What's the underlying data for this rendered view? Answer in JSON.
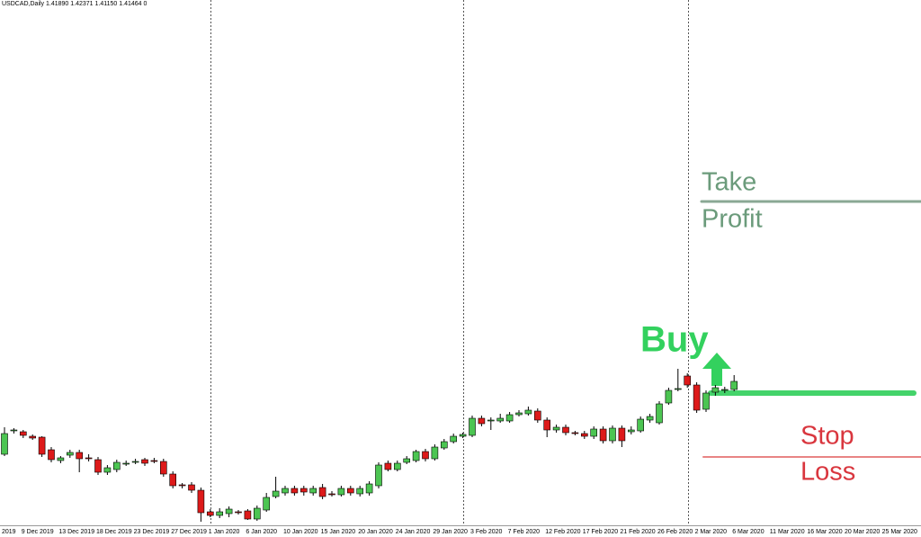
{
  "chart_data": {
    "type": "candlestick",
    "title": "USDCAD,Daily  1.41890 1.42371 1.41150 1.41464  0",
    "categories": [
      "2019",
      null,
      "9 Dec 2019",
      null,
      null,
      null,
      "13 Dec 2019",
      null,
      null,
      null,
      "18 Dec 2019",
      null,
      null,
      null,
      "23 Dec 2019",
      null,
      null,
      null,
      "27 Dec 2019",
      null,
      null,
      null,
      "1 Jan 2020",
      null,
      null,
      null,
      "6 Jan 2020",
      null,
      null,
      null,
      "10 Jan 2020",
      null,
      null,
      null,
      "15 Jan 2020",
      null,
      null,
      null,
      "20 Jan 2020",
      null,
      null,
      null,
      "24 Jan 2020",
      null,
      null,
      null,
      "29 Jan 2020",
      null,
      null,
      null,
      "3 Feb 2020",
      null,
      null,
      null,
      "7 Feb 2020",
      null,
      null,
      null,
      "12 Feb 2020",
      null,
      null,
      null,
      "17 Feb 2020",
      null,
      null,
      null,
      "21 Feb 2020",
      null,
      null,
      null,
      "26 Feb 2020",
      null,
      null,
      null,
      "2 Mar 2020",
      null,
      null,
      null,
      "6 Mar 2020",
      null,
      null,
      null,
      "11 Mar 2020",
      null,
      null,
      null,
      "16 Mar 2020",
      null,
      null,
      null,
      "20 Mar 2020",
      null,
      null,
      null,
      "25 Mar 2020",
      null,
      null,
      null
    ],
    "open": [
      1.3159,
      1.3237,
      1.3234,
      1.3219,
      1.3216,
      1.3174,
      1.3138,
      1.3156,
      1.3165,
      1.3147,
      1.3141,
      1.3099,
      1.3108,
      1.3126,
      1.3132,
      1.3141,
      1.3138,
      1.3135,
      1.3093,
      1.3057,
      1.3057,
      1.3039,
      1.2967,
      1.2955,
      1.2961,
      1.2967,
      1.297,
      1.2943,
      1.2973,
      1.3018,
      1.303,
      1.3045,
      1.3045,
      1.303,
      1.3048,
      1.3027,
      1.3024,
      1.3045,
      1.3027,
      1.303,
      1.3054,
      1.3129,
      1.3108,
      1.3132,
      1.3138,
      1.3168,
      1.3144,
      1.318,
      1.3201,
      1.3219,
      1.3222,
      1.3279,
      1.327,
      1.327,
      1.327,
      1.3291,
      1.3294,
      1.3303,
      1.3273,
      1.324,
      1.3249,
      1.3231,
      1.3228,
      1.3219,
      1.3243,
      1.3204,
      1.3246,
      1.3234,
      1.3237,
      1.3273,
      1.3264,
      1.333,
      1.3375,
      1.342,
      1.339,
      1.3309,
      1.3366,
      1.3372,
      1.3375,
      null,
      null,
      null,
      null,
      null,
      null,
      null,
      null,
      null,
      null,
      null,
      null,
      null,
      null,
      null,
      null,
      null,
      null,
      null
    ],
    "high": [
      1.3249,
      1.3246,
      1.324,
      1.3225,
      1.3219,
      1.3183,
      1.3153,
      1.3174,
      1.3174,
      1.3159,
      1.315,
      1.3123,
      1.3141,
      1.3138,
      1.3144,
      1.3147,
      1.3147,
      1.3144,
      1.3102,
      1.3063,
      1.3066,
      1.3048,
      1.2976,
      1.2979,
      1.2985,
      1.2973,
      1.2976,
      1.2988,
      1.303,
      1.3084,
      1.3054,
      1.3054,
      1.3054,
      1.3054,
      1.306,
      1.3036,
      1.3054,
      1.3054,
      1.3054,
      1.3069,
      1.3132,
      1.3138,
      1.3138,
      1.3153,
      1.3174,
      1.3177,
      1.3192,
      1.321,
      1.3228,
      1.3231,
      1.3288,
      1.3288,
      1.3282,
      1.3294,
      1.33,
      1.3306,
      1.3318,
      1.3312,
      1.3282,
      1.3258,
      1.3258,
      1.3237,
      1.3237,
      1.3252,
      1.3252,
      1.3255,
      1.3255,
      1.3252,
      1.3285,
      1.3294,
      1.3336,
      1.3381,
      1.3444,
      1.3429,
      1.3399,
      1.3372,
      1.339,
      1.3384,
      1.3423,
      null,
      null,
      null,
      null,
      null,
      null,
      null,
      null,
      null,
      null,
      null,
      null,
      null,
      null,
      null,
      null,
      null,
      null,
      null
    ],
    "low": [
      1.3153,
      1.3228,
      1.3213,
      1.3207,
      1.315,
      1.3132,
      1.3129,
      1.3147,
      1.3099,
      1.3135,
      1.309,
      1.309,
      1.3099,
      1.312,
      1.3126,
      1.312,
      1.3129,
      1.3084,
      1.3045,
      1.3045,
      1.303,
      1.2934,
      1.2949,
      1.2946,
      1.2949,
      1.2958,
      1.294,
      1.2937,
      1.2967,
      1.3012,
      1.3021,
      1.3021,
      1.3021,
      1.3021,
      1.3009,
      1.3018,
      1.3018,
      1.3021,
      1.3018,
      1.3021,
      1.3045,
      1.3102,
      1.3102,
      1.3126,
      1.3132,
      1.3135,
      1.3138,
      1.3174,
      1.3195,
      1.3213,
      1.3216,
      1.3252,
      1.324,
      1.3264,
      1.3264,
      1.3285,
      1.3288,
      1.3264,
      1.3216,
      1.3231,
      1.3222,
      1.3222,
      1.321,
      1.321,
      1.3195,
      1.3195,
      1.3183,
      1.3225,
      1.3231,
      1.3264,
      1.3258,
      1.3324,
      1.3369,
      1.3381,
      1.3297,
      1.33,
      1.3354,
      1.3363,
      1.3369,
      null,
      null,
      null,
      null,
      null,
      null,
      null,
      null,
      null,
      null,
      null,
      null,
      null,
      null,
      null,
      null,
      null,
      null,
      null
    ],
    "close": [
      1.3228,
      1.324,
      1.3222,
      1.3213,
      1.3159,
      1.3141,
      1.3147,
      1.3165,
      1.3144,
      1.3144,
      1.3099,
      1.3114,
      1.3132,
      1.3129,
      1.3135,
      1.3129,
      1.3135,
      1.3093,
      1.3054,
      1.3054,
      1.3039,
      1.2964,
      1.2955,
      1.2967,
      1.2976,
      1.2964,
      1.2943,
      1.2979,
      1.3015,
      1.3036,
      1.3045,
      1.303,
      1.3033,
      1.3045,
      1.3018,
      1.3024,
      1.3045,
      1.303,
      1.3045,
      1.306,
      1.3123,
      1.3108,
      1.3129,
      1.3144,
      1.3168,
      1.3144,
      1.3183,
      1.3201,
      1.3219,
      1.3225,
      1.3279,
      1.3261,
      1.3273,
      1.3279,
      1.3291,
      1.3297,
      1.3306,
      1.3273,
      1.324,
      1.3249,
      1.3231,
      1.3228,
      1.3219,
      1.3243,
      1.3204,
      1.3246,
      1.3204,
      1.324,
      1.3276,
      1.3285,
      1.3327,
      1.3372,
      1.3378,
      1.339,
      1.3306,
      1.3363,
      1.3381,
      1.3375,
      1.3402,
      null,
      null,
      null,
      null,
      null,
      null,
      null,
      null,
      null,
      null,
      null,
      null,
      null,
      null,
      null,
      null,
      null,
      null,
      null
    ],
    "up_color": "#4cc552",
    "down_color": "#dd1a1a",
    "ylim": [
      1.2925,
      1.465
    ],
    "levels": {
      "take_profit": 1.4002,
      "entry": 1.3363,
      "stop_loss": 1.315
    },
    "annotations": {
      "take": "Take",
      "profit": "Profit",
      "buy": "Buy",
      "stop": "Stop",
      "loss": "Loss"
    }
  }
}
